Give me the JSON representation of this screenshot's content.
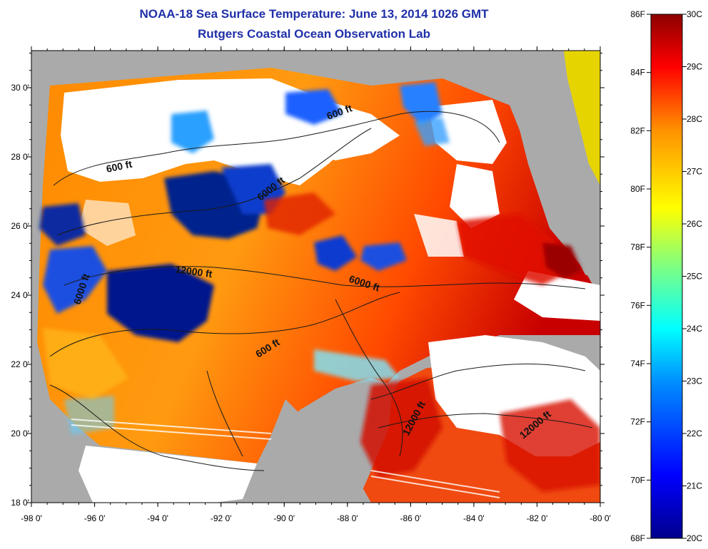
{
  "header": {
    "title": "NOAA-18 Sea Surface Temperature:  June 13, 2014 1026 GMT",
    "subtitle": "Rutgers Coastal Ocean Observation Lab"
  },
  "map": {
    "x_ticks": [
      "-98 0'",
      "-96 0'",
      "-94 0'",
      "-92 0'",
      "-90 0'",
      "-88 0'",
      "-86 0'",
      "-84 0'",
      "-82 0'",
      "-80 0'"
    ],
    "y_ticks": [
      "30 0'",
      "28 0'",
      "26 0'",
      "24 0'",
      "22 0'",
      "20 0'",
      "18 0'"
    ],
    "contour_labels": [
      {
        "text": "600 ft",
        "rot": -12
      },
      {
        "text": "600 ft",
        "rot": -20
      },
      {
        "text": "6000 ft",
        "rot": -38
      },
      {
        "text": "12000 ft",
        "rot": 8
      },
      {
        "text": "6000 ft",
        "rot": -72
      },
      {
        "text": "6000 ft",
        "rot": 18
      },
      {
        "text": "600 ft",
        "rot": -32
      },
      {
        "text": "12000 ft",
        "rot": -62
      },
      {
        "text": "12000 ft",
        "rot": -40
      }
    ],
    "colors": {
      "land": "#aaaaaa",
      "cloud": "#ffffff"
    }
  },
  "colorbar": {
    "left_labels": [
      "86F",
      "84F",
      "82F",
      "80F",
      "78F",
      "76F",
      "74F",
      "72F",
      "70F",
      "68F"
    ],
    "right_labels": [
      "30C",
      "29C",
      "28C",
      "27C",
      "26C",
      "25C",
      "24C",
      "23C",
      "22C",
      "21C",
      "20C"
    ],
    "stops": [
      "#00008c",
      "#0000ff",
      "#0090ff",
      "#00ffff",
      "#80ff80",
      "#ffff00",
      "#ff9000",
      "#ff0000",
      "#8c0000"
    ]
  }
}
